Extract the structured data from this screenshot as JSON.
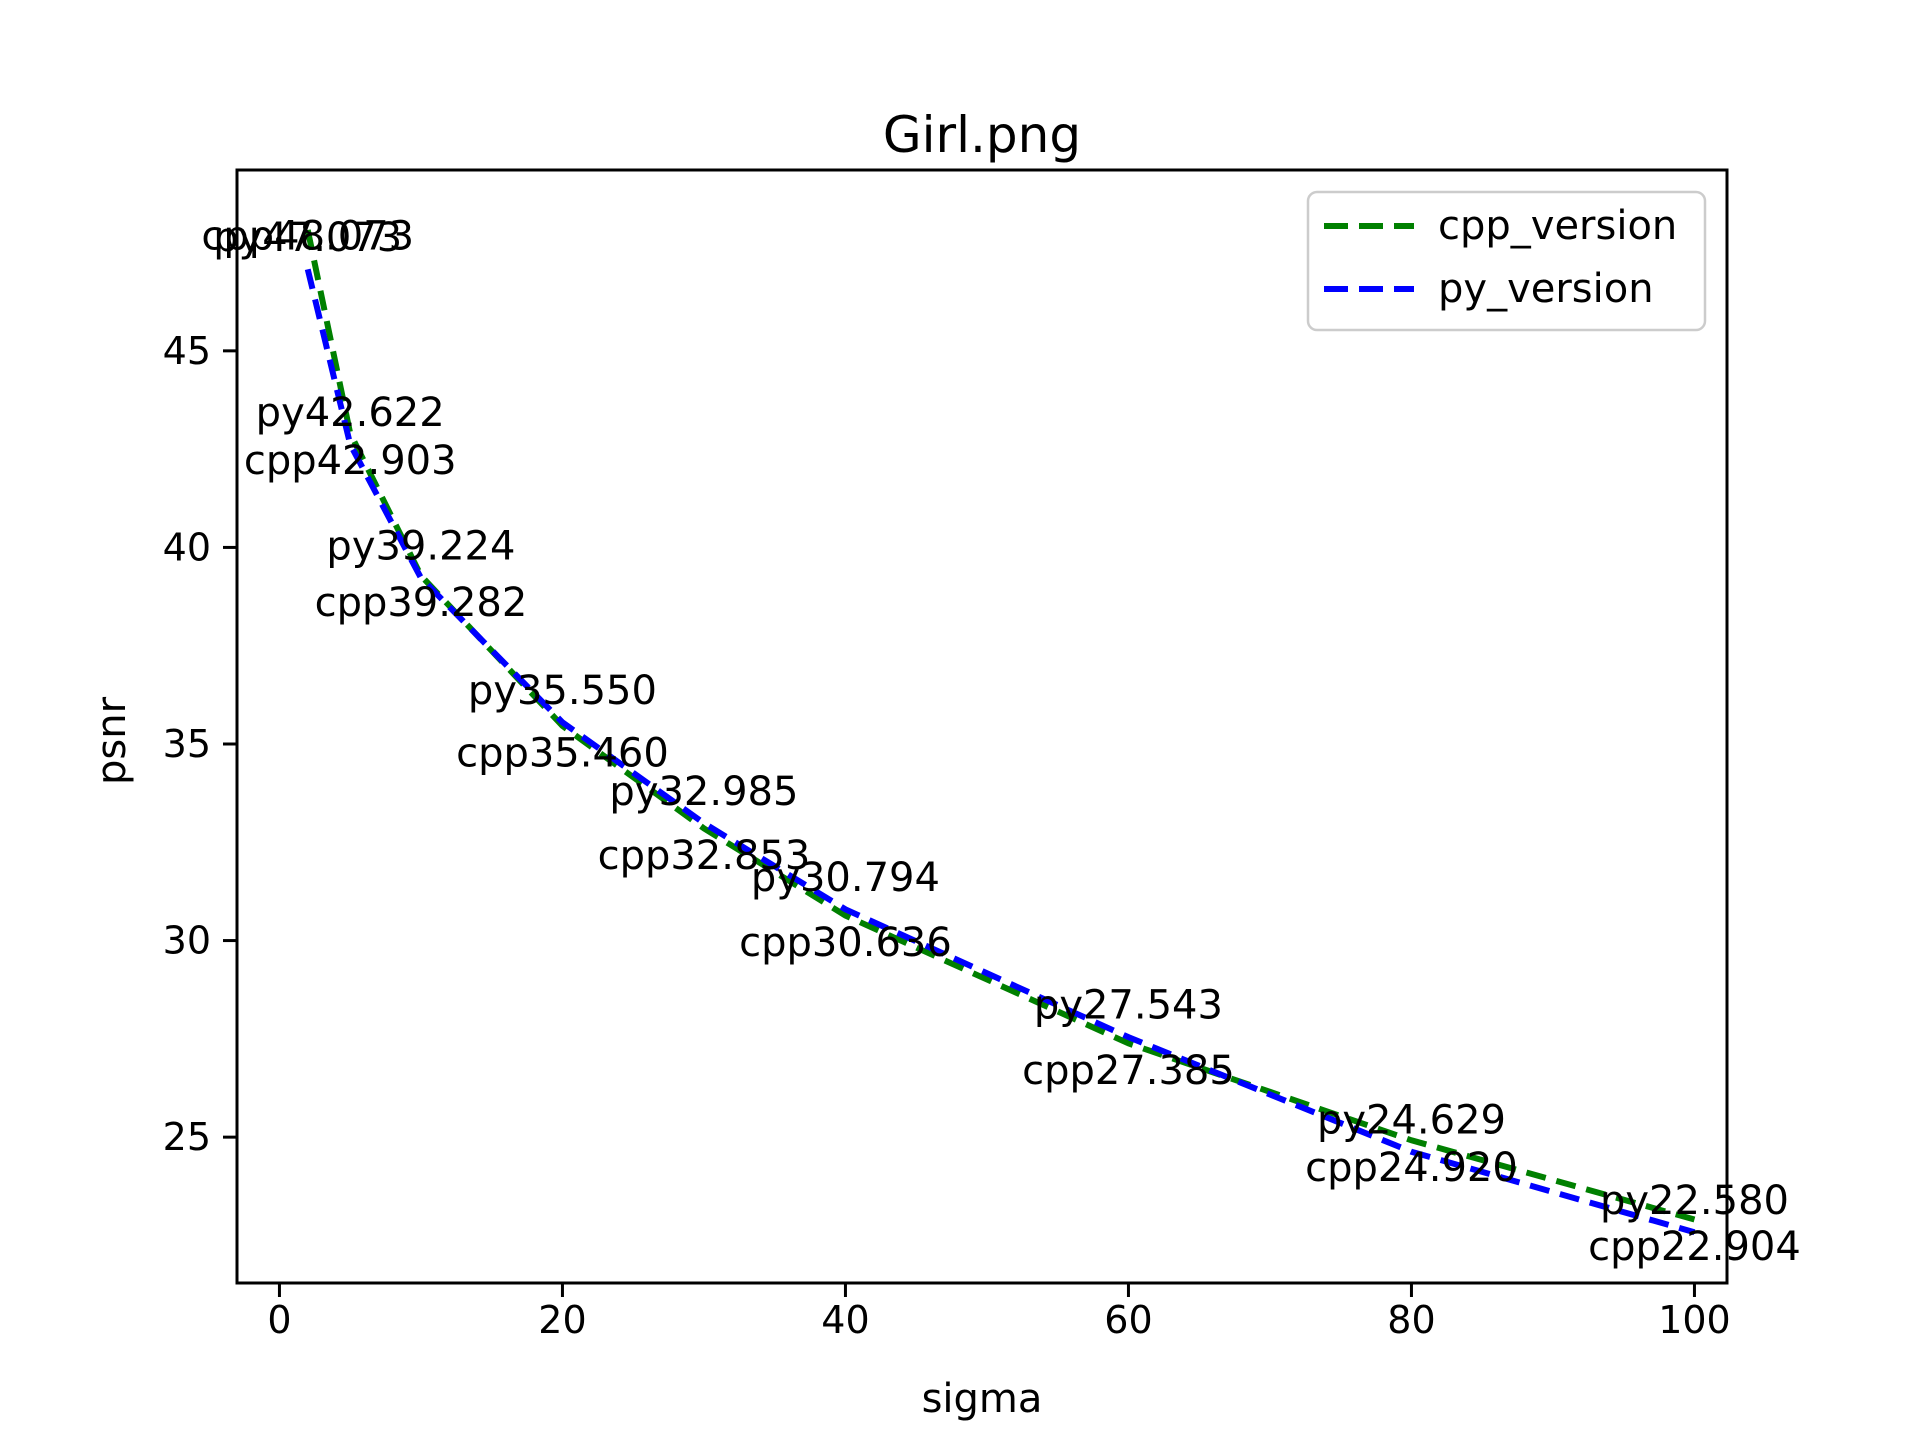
{
  "window": {
    "title": "Girl.png"
  },
  "chart_data": {
    "type": "line",
    "title": "Girl.png",
    "xlabel": "sigma",
    "ylabel": "psnr",
    "x": [
      2,
      5,
      10,
      20,
      30,
      40,
      60,
      80,
      100
    ],
    "series": [
      {
        "name": "cpp_version",
        "color": "#008000",
        "linestyle": "dashed",
        "values": [
          48.073,
          42.903,
          39.282,
          35.46,
          32.853,
          30.636,
          27.385,
          24.92,
          22.904
        ],
        "point_labels": [
          "cpp48.073",
          "cpp42.903",
          "cpp39.282",
          "cpp35.460",
          "cpp32.853",
          "cpp30.636",
          "cpp27.385",
          "cpp24.920",
          "cpp22.904"
        ],
        "label_dy": [
          -0.17,
          -0.7,
          -0.7,
          -0.7,
          -0.7,
          -0.7,
          -0.7,
          -0.7,
          -0.7
        ]
      },
      {
        "name": "py_version",
        "color": "#0000ff",
        "linestyle": "dashed",
        "values": [
          47.073,
          42.622,
          39.224,
          35.55,
          32.985,
          30.794,
          27.543,
          24.629,
          22.58
        ],
        "point_labels": [
          "py47.073",
          "py42.622",
          "py39.224",
          "py35.550",
          "py32.985",
          "py30.794",
          "py27.543",
          "py24.629",
          "py22.580"
        ],
        "label_dy": [
          0.8,
          0.8,
          0.8,
          0.8,
          0.8,
          0.8,
          0.8,
          0.8,
          0.8
        ]
      }
    ],
    "xticks": [
      0,
      20,
      40,
      60,
      80,
      100
    ],
    "yticks": [
      25,
      30,
      35,
      40,
      45
    ],
    "xlim": [
      -3.0,
      102.3
    ],
    "ylim": [
      21.29,
      49.6
    ],
    "grid": false,
    "legend": {
      "position": "upper right",
      "entries": [
        "cpp_version",
        "py_version"
      ]
    }
  }
}
